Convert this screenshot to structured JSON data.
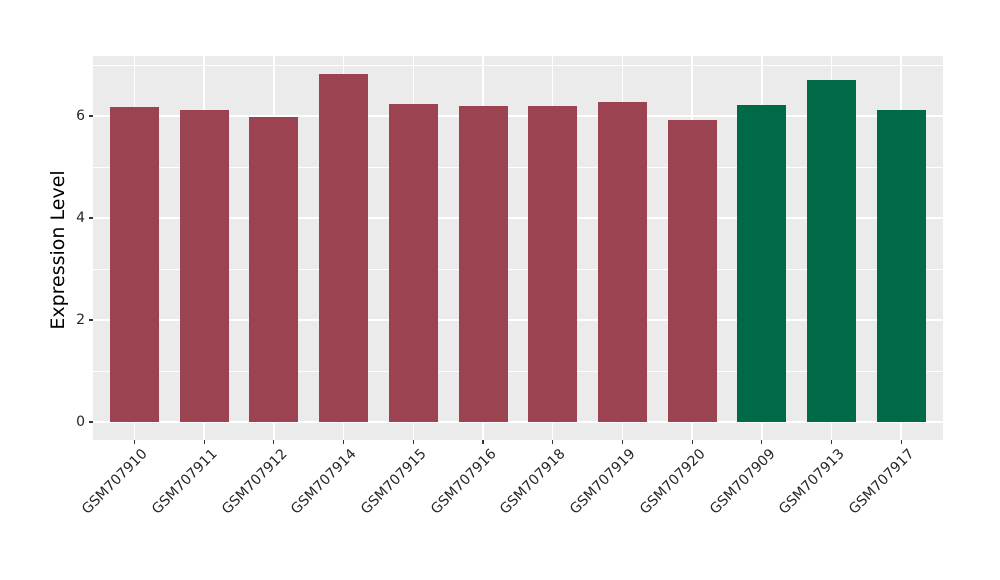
{
  "chart_data": {
    "type": "bar",
    "title": "",
    "xlabel": "",
    "ylabel": "Expression Level",
    "categories": [
      "GSM707910",
      "GSM707911",
      "GSM707912",
      "GSM707914",
      "GSM707915",
      "GSM707916",
      "GSM707918",
      "GSM707919",
      "GSM707920",
      "GSM707909",
      "GSM707913",
      "GSM707917"
    ],
    "values": [
      6.17,
      6.12,
      5.99,
      6.83,
      6.24,
      6.2,
      6.19,
      6.27,
      5.92,
      6.21,
      6.7,
      6.12
    ],
    "bar_colors": [
      "#9B4350",
      "#9B4350",
      "#9B4350",
      "#9B4350",
      "#9B4350",
      "#9B4350",
      "#9B4350",
      "#9B4350",
      "#9B4350",
      "#006947",
      "#006947",
      "#006947"
    ],
    "ylim": [
      0,
      7.18
    ],
    "yticks": [
      0,
      2,
      4,
      6
    ],
    "ytick_labels": [
      "0",
      "2",
      "4",
      "6"
    ],
    "yticks_minor": [
      1,
      3,
      5,
      7
    ],
    "grid": "major-and-minor-horizontal, vertical-at-category-centers",
    "legend_position": "none",
    "x_tick_rotation_deg": 45,
    "colors": {
      "group_red": "#9B4350",
      "group_green": "#006947",
      "panel_background": "#EBEBEB",
      "gridline": "#FFFFFF",
      "axis_text": "#262626",
      "page_background": "#FFFFFF"
    }
  }
}
